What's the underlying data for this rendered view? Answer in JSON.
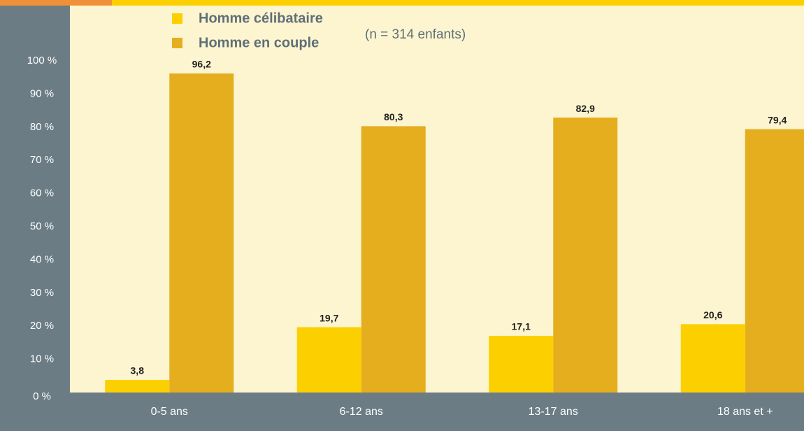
{
  "chart_data": {
    "type": "bar",
    "subtitle": "(n = 314 enfants)",
    "categories": [
      "0-5 ans",
      "6-12 ans",
      "13-17 ans",
      "18 ans et +"
    ],
    "series": [
      {
        "name": "Homme célibataire",
        "color": "#fcd000",
        "values": [
          3.8,
          19.7,
          17.1,
          20.6
        ],
        "value_labels": [
          "3,8",
          "19,7",
          "17,1",
          "20,6"
        ]
      },
      {
        "name": "Homme en couple",
        "color": "#e5ae1f",
        "values": [
          96.2,
          80.3,
          82.9,
          79.4
        ],
        "value_labels": [
          "96,2",
          "80,3",
          "82,9",
          "79,4"
        ]
      }
    ],
    "ylim": [
      0,
      100
    ],
    "yticks": [
      {
        "value": 0,
        "label": "0 %"
      },
      {
        "value": 10,
        "label": "10 %"
      },
      {
        "value": 20,
        "label": "20 %"
      },
      {
        "value": 30,
        "label": "30 %"
      },
      {
        "value": 40,
        "label": "40 %"
      },
      {
        "value": 50,
        "label": "50 %"
      },
      {
        "value": 60,
        "label": "60 %"
      },
      {
        "value": 70,
        "label": "70 %"
      },
      {
        "value": 80,
        "label": "80 %"
      },
      {
        "value": 90,
        "label": "90 %"
      },
      {
        "value": 100,
        "label": "100 %"
      }
    ],
    "grid": false
  }
}
